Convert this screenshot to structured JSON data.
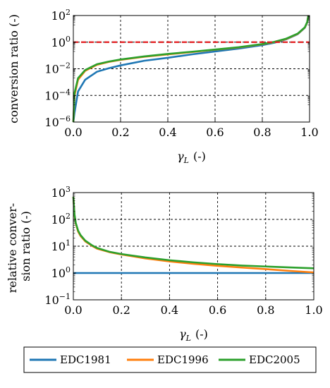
{
  "chart_data": [
    {
      "type": "line",
      "title": "",
      "xlabel_symbol": "γ",
      "xlabel_subscript": "L",
      "xlabel_unit": "(-)",
      "ylabel": "conversion ratio (-)",
      "xlim": [
        0,
        1
      ],
      "ylim": [
        1e-06,
        100
      ],
      "yscale": "log",
      "x_ticks": [
        "0.0",
        "0.2",
        "0.4",
        "0.6",
        "0.8",
        "1.0"
      ],
      "y_ticks": [
        {
          "base": "10",
          "exp": "2"
        },
        {
          "base": "10",
          "exp": "0"
        },
        {
          "base": "10",
          "exp": "−2"
        },
        {
          "base": "10",
          "exp": "−4"
        },
        {
          "base": "10",
          "exp": "−6"
        }
      ],
      "grid": true,
      "reference_line": {
        "y": 1,
        "color": "#e31a1c",
        "style": "dashed"
      },
      "x": [
        0.0,
        0.005,
        0.02,
        0.05,
        0.1,
        0.15,
        0.2,
        0.3,
        0.4,
        0.5,
        0.6,
        0.7,
        0.8,
        0.85,
        0.9,
        0.95,
        0.98,
        0.99,
        0.995
      ],
      "series": [
        {
          "name": "EDC1981",
          "color": "#1f77b4",
          "values": [
            1e-06,
            5e-06,
            0.0002,
            0.0015,
            0.006,
            0.011,
            0.018,
            0.04,
            0.067,
            0.12,
            0.2,
            0.33,
            0.6,
            0.9,
            1.6,
            4,
            12,
            30,
            100
          ]
        },
        {
          "name": "EDC1996",
          "color": "#ff7f0e",
          "values": [
            1e-06,
            0.0001,
            0.0015,
            0.007,
            0.02,
            0.033,
            0.047,
            0.08,
            0.12,
            0.18,
            0.27,
            0.4,
            0.7,
            1.0,
            1.7,
            4.2,
            12.5,
            31,
            100
          ]
        },
        {
          "name": "EDC2005",
          "color": "#2ca02c",
          "values": [
            1e-06,
            0.00015,
            0.002,
            0.008,
            0.022,
            0.035,
            0.05,
            0.085,
            0.13,
            0.19,
            0.28,
            0.42,
            0.72,
            1.05,
            1.8,
            4.4,
            13,
            32,
            100
          ]
        }
      ]
    },
    {
      "type": "line",
      "title": "",
      "xlabel_symbol": "γ",
      "xlabel_subscript": "L",
      "xlabel_unit": "(-)",
      "ylabel_lines": [
        "relative conver-",
        "sion ratio (-)"
      ],
      "xlim": [
        0,
        1
      ],
      "ylim": [
        0.1,
        1000
      ],
      "yscale": "log",
      "x_ticks": [
        "0.0",
        "0.2",
        "0.4",
        "0.6",
        "0.8",
        "1.0"
      ],
      "y_ticks": [
        {
          "base": "10",
          "exp": "3"
        },
        {
          "base": "10",
          "exp": "2"
        },
        {
          "base": "10",
          "exp": "1"
        },
        {
          "base": "10",
          "exp": "0"
        },
        {
          "base": "10",
          "exp": "−1"
        }
      ],
      "grid": true,
      "x": [
        0.0,
        0.005,
        0.01,
        0.02,
        0.03,
        0.05,
        0.08,
        0.1,
        0.15,
        0.2,
        0.3,
        0.4,
        0.5,
        0.6,
        0.7,
        0.8,
        0.9,
        1.0
      ],
      "series": [
        {
          "name": "EDC1981",
          "color": "#1f77b4",
          "values": [
            1,
            1,
            1,
            1,
            1,
            1,
            1,
            1,
            1,
            1,
            1,
            1,
            1,
            1,
            1,
            1,
            1,
            1
          ]
        },
        {
          "name": "EDC1996",
          "color": "#ff7f0e",
          "values": [
            700,
            140,
            70,
            35,
            24,
            15,
            10,
            8,
            6,
            4.9,
            3.5,
            2.7,
            2.2,
            1.85,
            1.6,
            1.4,
            1.2,
            1.05
          ]
        },
        {
          "name": "EDC2005",
          "color": "#2ca02c",
          "values": [
            700,
            150,
            75,
            38,
            26,
            16,
            10.5,
            8.5,
            6.2,
            5.1,
            3.8,
            3.0,
            2.5,
            2.15,
            1.9,
            1.75,
            1.62,
            1.5
          ]
        }
      ]
    }
  ],
  "legend": [
    {
      "label": "EDC1981",
      "color": "#1f77b4"
    },
    {
      "label": "EDC1996",
      "color": "#ff7f0e"
    },
    {
      "label": "EDC2005",
      "color": "#2ca02c"
    }
  ]
}
